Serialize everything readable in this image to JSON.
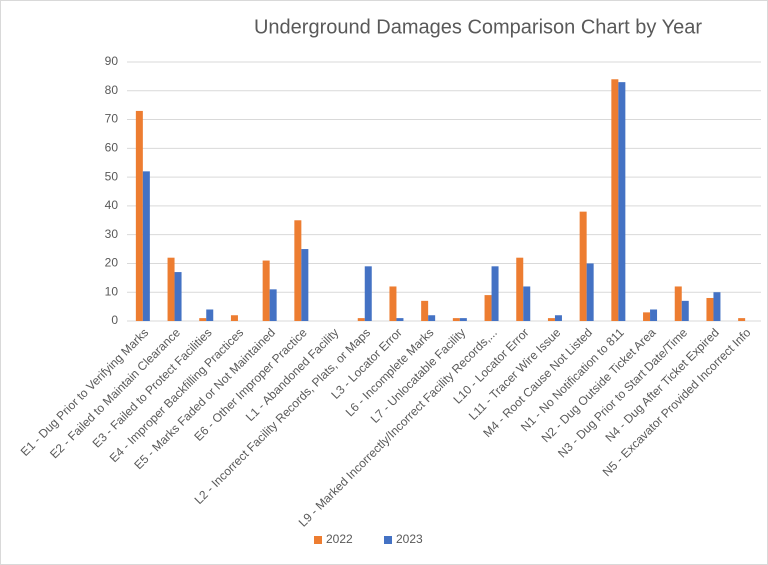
{
  "chart_data": {
    "type": "bar",
    "title": "Underground Damages Comparison Chart by Year",
    "categories": [
      "E1 - Dug Prior to Verifying Marks",
      "E2 - Failed to Maintain Clearance",
      "E3 - Failed to Protect Facilities",
      "E4 - Improper Backfilling Practices",
      "E5 - Marks Faded or Not Maintained",
      "E6 - Other Improper Practice",
      "L1 - Abandoned Facility",
      "L2 - Incorrect Facility Records, Plats, or Maps",
      "L3 - Locator Error",
      "L6 - Incomplete Marks",
      "L7 - Unlocatable Facility",
      "L9 - Marked Incorrectly/Incorrect Facility Records,...",
      "L10 - Locator Error",
      "L11 - Tracer Wire Issue",
      "M4 - Root Cause Not Listed",
      "N1 - No Notification to 811",
      "N2 - Dug Outside Ticket Area",
      "N3 - Dug Prior to Start Date/Time",
      "N4 - Dug After Ticket Expired",
      "N5 - Excavator Provided Incorrect Info"
    ],
    "series": [
      {
        "name": "2022",
        "color": "#ed7d31",
        "values": [
          73,
          22,
          1,
          2,
          21,
          35,
          0,
          1,
          12,
          7,
          1,
          9,
          22,
          1,
          38,
          84,
          3,
          12,
          8,
          1
        ]
      },
      {
        "name": "2023",
        "color": "#4472c4",
        "values": [
          52,
          17,
          4,
          0,
          11,
          25,
          0,
          19,
          1,
          2,
          1,
          19,
          12,
          2,
          20,
          83,
          4,
          7,
          10,
          0
        ]
      }
    ],
    "ylim": [
      0,
      90
    ],
    "yticks": [
      0,
      10,
      20,
      30,
      40,
      50,
      60,
      70,
      80,
      90
    ],
    "grid": true,
    "legend": "bottom"
  }
}
